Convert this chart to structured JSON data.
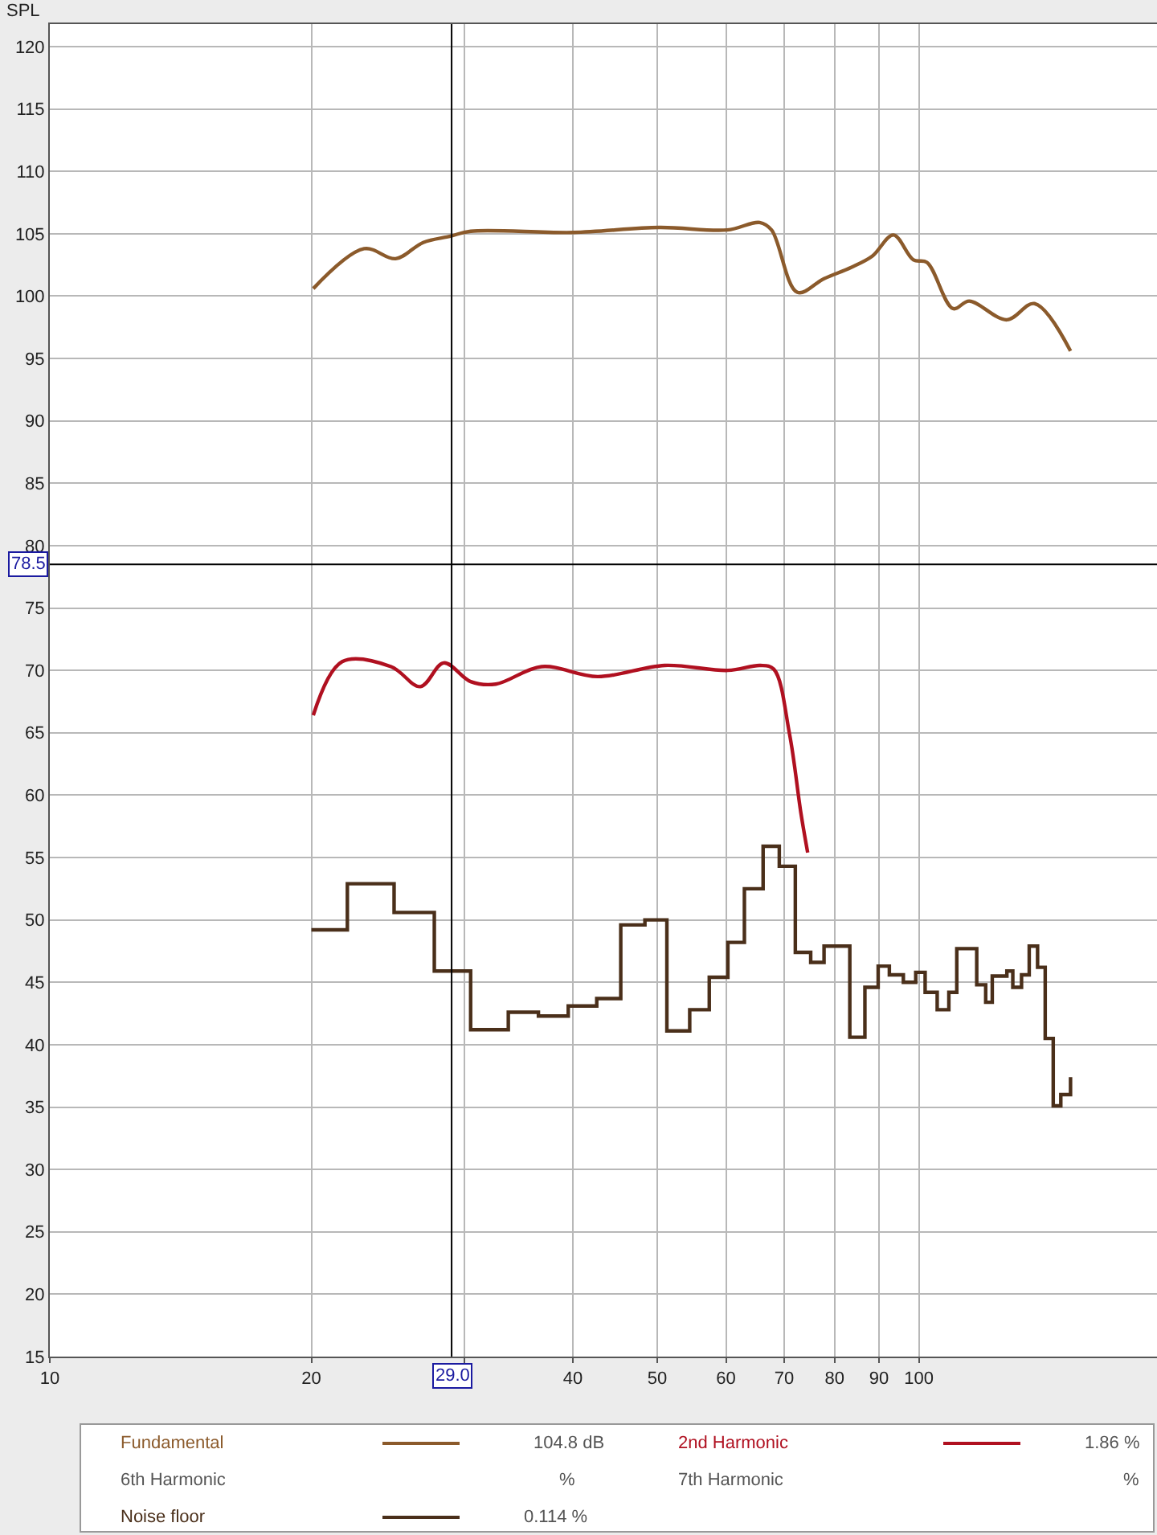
{
  "chart_data": {
    "type": "line",
    "ylabel": "SPL",
    "xlim": [
      10,
      188
    ],
    "xticks": [
      10,
      20,
      {
        "value": 30,
        "label": null
      },
      40,
      50,
      60,
      70,
      80,
      90,
      100
    ],
    "ylim": [
      15,
      121.8
    ],
    "yticks": [
      15,
      20,
      25,
      30,
      35,
      40,
      45,
      50,
      55,
      60,
      65,
      70,
      75,
      80,
      85,
      90,
      95,
      100,
      105,
      110,
      115,
      120
    ],
    "log": "x",
    "grid": true,
    "legend": "bottom",
    "series": [
      {
        "name": "Fundamental",
        "color": "#8b5a2b",
        "x": [
          20.1,
          23.0,
          25.0,
          26.9,
          28.9,
          30.5,
          40,
          50.3,
          60.2,
          65.6,
          67.7,
          72.5,
          77.8,
          83.6,
          88.4,
          93.5,
          98.6,
          102.2,
          109.5,
          114.3,
          126.3,
          135.9,
          149.5
        ],
        "values": [
          100.6,
          103.8,
          103.0,
          104.3,
          104.8,
          105.2,
          105.1,
          105.5,
          105.3,
          105.9,
          105.3,
          100.3,
          101.4,
          102.3,
          103.2,
          104.9,
          102.9,
          102.7,
          99.0,
          99.6,
          98.1,
          99.4,
          95.6
        ]
      },
      {
        "name": "2nd Harmonic",
        "color": "#b01020",
        "x": [
          20.1,
          21.7,
          24.7,
          26.7,
          28.4,
          30.5,
          32.6,
          36.8,
          42.7,
          51.0,
          60.3,
          65.7,
          68.1,
          71.0,
          73.2,
          74.5
        ],
        "values": [
          66.4,
          70.7,
          70.3,
          68.7,
          70.6,
          69.1,
          68.9,
          70.3,
          69.5,
          70.4,
          70.0,
          70.4,
          70.1,
          64.9,
          58.5,
          55.4
        ]
      },
      {
        "name": "Noise floor",
        "type": "step",
        "color": "#4a2f1a",
        "x": [
          20.0,
          22.0,
          24.9,
          27.7,
          30.5,
          33.7,
          36.5,
          39.5,
          42.6,
          45.4,
          48.4,
          51.3,
          54.5,
          57.4,
          60.3,
          63.0,
          66.2,
          69.1,
          72.1,
          75.1,
          77.8,
          83.3,
          86.7,
          89.8,
          92.5,
          96.0,
          99.2,
          101.7,
          105.0,
          108.3,
          110.6,
          116.6,
          119.4,
          121.5,
          126.3,
          128.3,
          131.3,
          134.0,
          137.0,
          139.8,
          142.8,
          145.7,
          149.5
        ],
        "values": [
          49.2,
          52.9,
          50.6,
          45.9,
          41.2,
          42.6,
          42.3,
          43.1,
          43.7,
          49.6,
          50.0,
          41.1,
          42.8,
          45.4,
          48.2,
          52.5,
          55.9,
          54.3,
          47.4,
          46.6,
          47.9,
          40.6,
          44.6,
          46.3,
          45.6,
          45.0,
          45.8,
          44.2,
          42.8,
          44.2,
          47.7,
          44.8,
          43.4,
          45.5,
          45.9,
          44.6,
          45.6,
          47.9,
          46.2,
          40.5,
          35.1,
          36.0,
          37.4
        ]
      }
    ],
    "ref_lines": [
      {
        "axis": "x",
        "value": 29.0,
        "label": "29.0",
        "color": "#000000"
      },
      {
        "axis": "y",
        "value": 78.5,
        "label": "78.5",
        "color": "#000000"
      }
    ],
    "annotations": [
      "104.8 dB",
      "1.86 %",
      "0.114 %",
      "6th Harmonic",
      "%",
      "7th Harmonic",
      "%"
    ]
  }
}
